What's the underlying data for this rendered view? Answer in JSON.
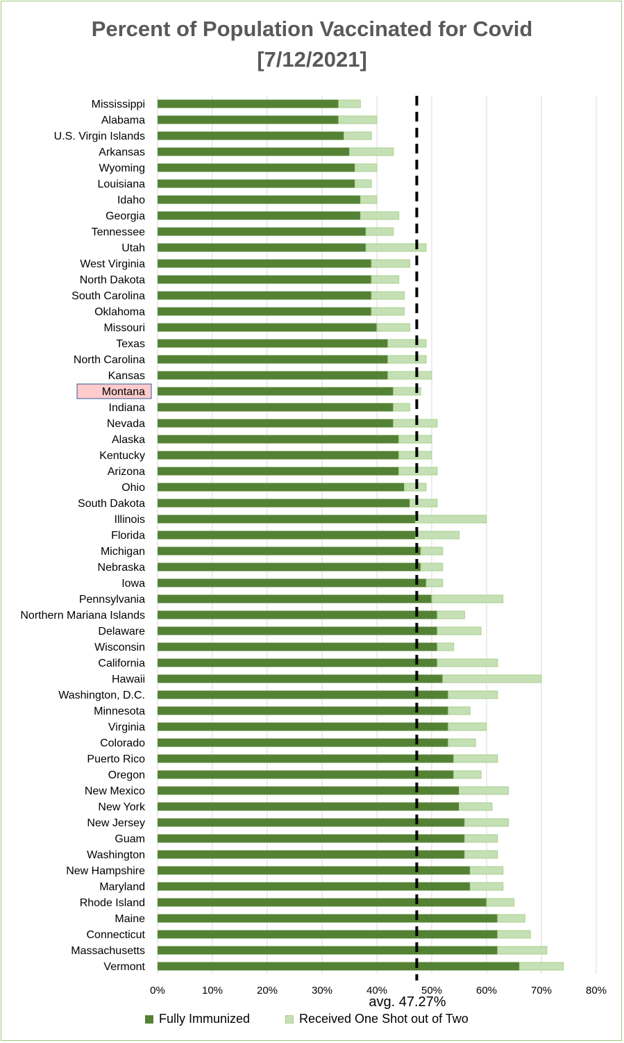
{
  "chart_data": {
    "type": "bar",
    "orientation": "horizontal",
    "stacked": true,
    "title": "Percent of Population Vaccinated for Covid",
    "subtitle": "[7/12/2021]",
    "highlighted_category": "Montana",
    "categories": [
      "Mississippi",
      "Alabama",
      "U.S. Virgin Islands",
      "Arkansas",
      "Wyoming",
      "Louisiana",
      "Idaho",
      "Georgia",
      "Tennessee",
      "Utah",
      "West Virginia",
      "North Dakota",
      "South Carolina",
      "Oklahoma",
      "Missouri",
      "Texas",
      "North Carolina",
      "Kansas",
      "Montana",
      "Indiana",
      "Nevada",
      "Alaska",
      "Kentucky",
      "Arizona",
      "Ohio",
      "South Dakota",
      "Illinois",
      "Florida",
      "Michigan",
      "Nebraska",
      "Iowa",
      "Pennsylvania",
      "Northern Mariana Islands",
      "Delaware",
      "Wisconsin",
      "California",
      "Hawaii",
      "Washington, D.C.",
      "Minnesota",
      "Virginia",
      "Colorado",
      "Puerto Rico",
      "Oregon",
      "New Mexico",
      "New York",
      "New Jersey",
      "Guam",
      "Washington",
      "New Hampshire",
      "Maryland",
      "Rhode Island",
      "Maine",
      "Connecticut",
      "Massachusetts",
      "Vermont"
    ],
    "series": [
      {
        "name": "Fully Immunized",
        "color": "#548235",
        "values": [
          33,
          33,
          34,
          35,
          36,
          36,
          37,
          37,
          38,
          38,
          39,
          39,
          39,
          39,
          40,
          42,
          42,
          42,
          43,
          43,
          43,
          44,
          44,
          44,
          45,
          46,
          47,
          47,
          48,
          48,
          49,
          50,
          51,
          51,
          51,
          51,
          52,
          53,
          53,
          53,
          53,
          54,
          54,
          55,
          55,
          56,
          56,
          56,
          57,
          57,
          60,
          62,
          62,
          62,
          66
        ]
      },
      {
        "name": "Received One Shot out of Two",
        "color": "#c5e0b4",
        "values": [
          4,
          7,
          5,
          8,
          4,
          3,
          3,
          7,
          5,
          11,
          7,
          5,
          6,
          6,
          6,
          7,
          7,
          8,
          5,
          3,
          8,
          6,
          6,
          7,
          4,
          5,
          13,
          8,
          4,
          4,
          3,
          13,
          5,
          8,
          3,
          11,
          18,
          9,
          4,
          7,
          5,
          8,
          5,
          9,
          6,
          8,
          6,
          6,
          6,
          6,
          5,
          5,
          6,
          9,
          8
        ]
      }
    ],
    "average": {
      "value": 47.27,
      "label": "avg. 47.27%"
    },
    "x_ticks": [
      "0%",
      "10%",
      "20%",
      "30%",
      "40%",
      "50%",
      "60%",
      "70%",
      "80%"
    ],
    "xlim": [
      0,
      80
    ],
    "grid": true,
    "legend_position": "bottom"
  }
}
